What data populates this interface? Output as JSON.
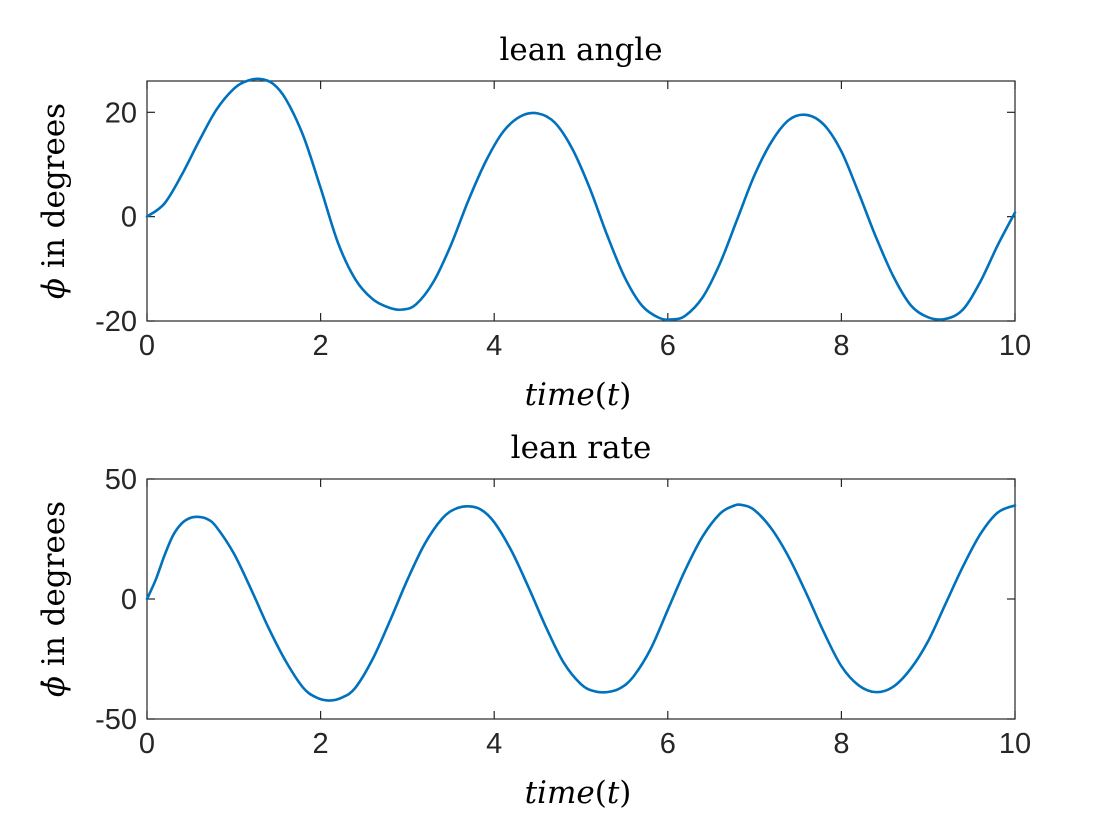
{
  "chart_data": [
    {
      "type": "line",
      "title": "lean angle",
      "xlabel": "time(t)",
      "ylabel": "ϕ in degrees",
      "ylabel_symbol": "ϕ",
      "ylabel_text": "in degrees",
      "xlim": [
        0,
        10
      ],
      "ylim": [
        -20,
        26
      ],
      "xticks": [
        0,
        2,
        4,
        6,
        8,
        10
      ],
      "xtick_labels": [
        "0",
        "2",
        "4",
        "6",
        "8",
        "10"
      ],
      "yticks": [
        -20,
        0,
        20
      ],
      "ytick_labels": [
        "-20",
        "0",
        "20"
      ],
      "grid": false,
      "series": [
        {
          "name": "lean angle",
          "color": "#0072BD",
          "x": [
            0,
            0.2,
            0.4,
            0.6,
            0.8,
            1.0,
            1.15,
            1.3,
            1.45,
            1.6,
            1.8,
            2.0,
            2.2,
            2.4,
            2.6,
            2.8,
            2.95,
            3.1,
            3.3,
            3.5,
            3.7,
            3.9,
            4.1,
            4.3,
            4.5,
            4.7,
            4.9,
            5.1,
            5.3,
            5.5,
            5.7,
            5.9,
            6.05,
            6.2,
            6.4,
            6.6,
            6.8,
            7.0,
            7.2,
            7.4,
            7.6,
            7.8,
            8.0,
            8.2,
            8.4,
            8.6,
            8.8,
            9.0,
            9.2,
            9.4,
            9.6,
            9.8,
            10.0
          ],
          "y": [
            0,
            2.5,
            8.0,
            14.5,
            20.5,
            24.5,
            26.0,
            26.4,
            25.5,
            22.5,
            15.5,
            5.5,
            -5.0,
            -12.0,
            -15.8,
            -17.5,
            -17.8,
            -16.8,
            -12.5,
            -5.5,
            3.0,
            10.5,
            16.2,
            19.2,
            19.8,
            18.0,
            13.0,
            5.5,
            -3.5,
            -11.5,
            -17.0,
            -19.4,
            -19.7,
            -19.0,
            -15.5,
            -9.0,
            -0.5,
            8.0,
            14.5,
            18.6,
            19.5,
            17.6,
            12.5,
            4.5,
            -4.0,
            -11.5,
            -17.0,
            -19.3,
            -19.6,
            -17.8,
            -12.5,
            -5.5,
            0.8
          ]
        }
      ]
    },
    {
      "type": "line",
      "title": "lean rate",
      "xlabel": "time(t)",
      "ylabel": "ϕ̇ in degrees",
      "ylabel_symbol": "ϕ̇",
      "ylabel_text": "in degrees",
      "xlim": [
        0,
        10
      ],
      "ylim": [
        -50,
        50
      ],
      "xticks": [
        0,
        2,
        4,
        6,
        8,
        10
      ],
      "xtick_labels": [
        "0",
        "2",
        "4",
        "6",
        "8",
        "10"
      ],
      "yticks": [
        -50,
        0,
        50
      ],
      "ytick_labels": [
        "-50",
        "0",
        "50"
      ],
      "grid": false,
      "series": [
        {
          "name": "lean rate",
          "color": "#0072BD",
          "x": [
            0,
            0.1,
            0.2,
            0.3,
            0.4,
            0.5,
            0.6,
            0.7,
            0.8,
            1.0,
            1.2,
            1.4,
            1.6,
            1.8,
            1.95,
            2.1,
            2.25,
            2.4,
            2.6,
            2.8,
            3.0,
            3.2,
            3.4,
            3.55,
            3.7,
            3.85,
            4.0,
            4.2,
            4.4,
            4.6,
            4.8,
            5.0,
            5.15,
            5.3,
            5.45,
            5.6,
            5.8,
            6.0,
            6.2,
            6.4,
            6.6,
            6.75,
            6.85,
            7.0,
            7.2,
            7.4,
            7.6,
            7.8,
            8.0,
            8.2,
            8.4,
            8.6,
            8.8,
            9.0,
            9.2,
            9.4,
            9.6,
            9.8,
            10.0
          ],
          "y": [
            0,
            8.0,
            18.0,
            26.5,
            31.5,
            33.8,
            34.2,
            33.2,
            30.0,
            19.0,
            4.0,
            -12.0,
            -26.0,
            -37.0,
            -41.0,
            -42.3,
            -41.0,
            -37.0,
            -25.0,
            -9.0,
            8.0,
            23.0,
            33.5,
            37.5,
            38.6,
            37.2,
            32.0,
            20.0,
            4.5,
            -12.0,
            -26.5,
            -35.5,
            -38.4,
            -38.8,
            -37.2,
            -32.5,
            -21.0,
            -4.5,
            12.0,
            26.0,
            35.5,
            38.7,
            39.2,
            37.0,
            29.0,
            17.0,
            2.0,
            -14.0,
            -28.0,
            -36.0,
            -38.8,
            -36.5,
            -29.0,
            -17.5,
            -2.0,
            13.5,
            27.0,
            36.0,
            39.0
          ]
        }
      ]
    }
  ]
}
